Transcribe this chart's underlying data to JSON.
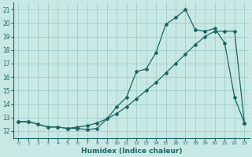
{
  "xlabel": "Humidex (Indice chaleur)",
  "x_values": [
    0,
    1,
    2,
    3,
    4,
    5,
    6,
    7,
    8,
    9,
    10,
    11,
    12,
    13,
    14,
    15,
    16,
    17,
    18,
    19,
    20,
    21,
    22,
    23
  ],
  "line1_y": [
    12.7,
    12.7,
    12.5,
    12.3,
    12.3,
    12.2,
    12.2,
    12.1,
    12.2,
    12.9,
    13.8,
    14.5,
    16.4,
    16.6,
    17.8,
    19.9,
    20.4,
    21.0,
    19.5,
    19.4,
    19.6,
    18.5,
    14.5,
    12.6
  ],
  "line2_y": [
    12.7,
    12.7,
    12.5,
    12.3,
    12.3,
    12.2,
    12.3,
    12.4,
    12.6,
    12.9,
    13.3,
    13.8,
    14.4,
    15.0,
    15.6,
    16.3,
    17.0,
    17.7,
    18.4,
    19.0,
    19.4,
    19.4,
    19.4,
    12.6
  ],
  "background_color": "#c8e8e4",
  "grid_color": "#9ecece",
  "line_color": "#1a6666",
  "ylim": [
    11.5,
    21.5
  ],
  "xlim": [
    -0.5,
    23.5
  ],
  "yticks": [
    12,
    13,
    14,
    15,
    16,
    17,
    18,
    19,
    20,
    21
  ],
  "xticks": [
    0,
    1,
    2,
    3,
    4,
    5,
    6,
    7,
    8,
    9,
    10,
    11,
    12,
    13,
    14,
    15,
    16,
    17,
    18,
    19,
    20,
    21,
    22,
    23
  ]
}
